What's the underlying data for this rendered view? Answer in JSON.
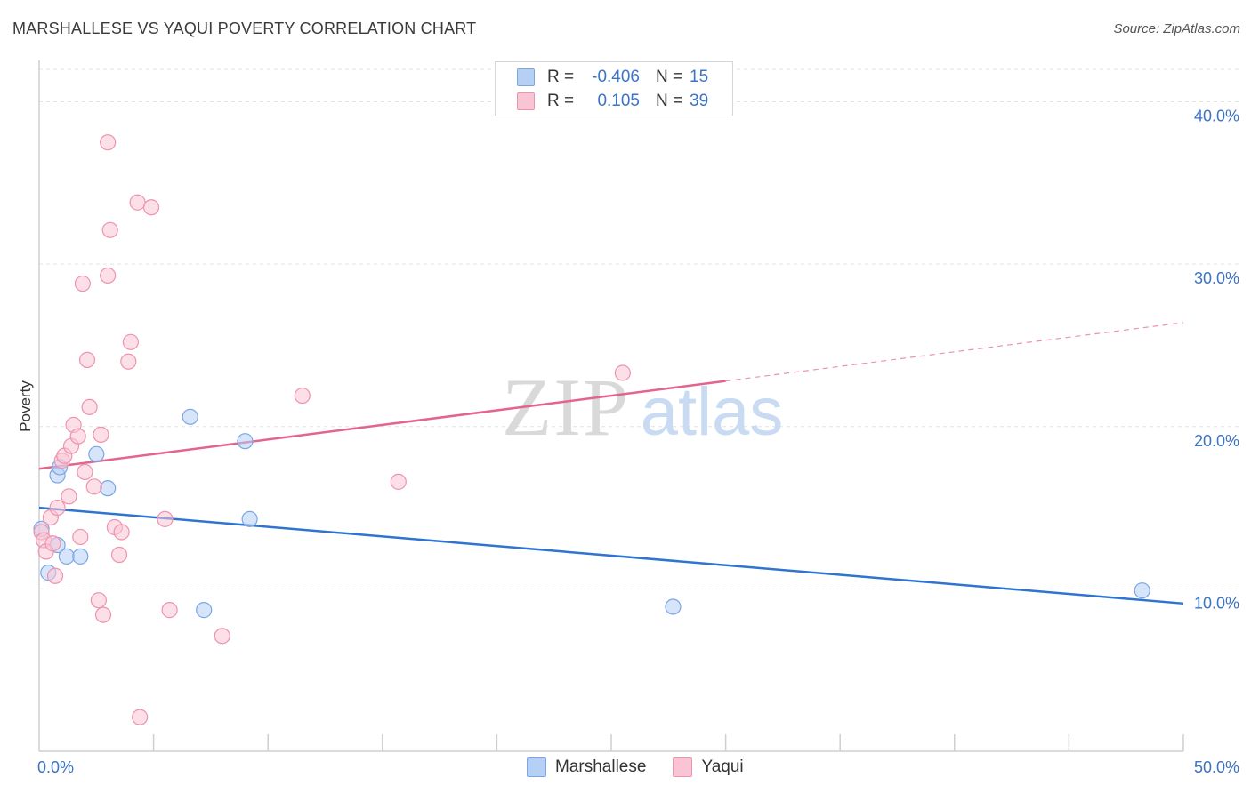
{
  "title": "MARSHALLESE VS YAQUI POVERTY CORRELATION CHART",
  "source": "Source: ZipAtlas.com",
  "watermark": {
    "zip": "ZIP",
    "atlas": "atlas"
  },
  "legend": {
    "r_label": "R =",
    "n_label": "N =",
    "rows": [
      {
        "name": "Marshallese",
        "r": "-0.406",
        "n": "15",
        "fill": "#b6d0f5",
        "stroke": "#7aa6e6"
      },
      {
        "name": "Yaqui",
        "r": "0.105",
        "n": "39",
        "fill": "#f9c4d3",
        "stroke": "#ee93af"
      }
    ]
  },
  "colors": {
    "blue_line": "#2f74d0",
    "pink_line": "#e4648b",
    "tick_text": "#3b73c7",
    "grid": "#e3e3e3"
  },
  "chart_data": {
    "type": "scatter",
    "title": "MARSHALLESE VS YAQUI POVERTY CORRELATION CHART",
    "xlabel": "",
    "ylabel": "Poverty",
    "xlim": [
      0,
      50
    ],
    "ylim": [
      0,
      42
    ],
    "x_ticks_labels": [
      "0.0%",
      "50.0%"
    ],
    "y_ticks": [
      10,
      20,
      30,
      40
    ],
    "y_tick_labels": [
      "10.0%",
      "20.0%",
      "30.0%",
      "40.0%"
    ],
    "series": [
      {
        "name": "Marshallese",
        "points": [
          [
            0.1,
            13.7
          ],
          [
            0.4,
            11.0
          ],
          [
            0.8,
            12.7
          ],
          [
            0.8,
            17.0
          ],
          [
            0.9,
            17.5
          ],
          [
            1.2,
            12.0
          ],
          [
            1.8,
            12.0
          ],
          [
            2.5,
            18.3
          ],
          [
            3.0,
            16.2
          ],
          [
            6.6,
            20.6
          ],
          [
            7.2,
            8.7
          ],
          [
            9.0,
            19.1
          ],
          [
            9.2,
            14.3
          ],
          [
            27.7,
            8.9
          ],
          [
            48.2,
            9.9
          ]
        ],
        "trend": {
          "x": [
            0,
            50
          ],
          "y": [
            15.0,
            9.1
          ],
          "dashed_from": null
        }
      },
      {
        "name": "Yaqui",
        "points": [
          [
            0.1,
            13.5
          ],
          [
            0.2,
            13.0
          ],
          [
            0.3,
            12.3
          ],
          [
            0.5,
            14.4
          ],
          [
            0.6,
            12.8
          ],
          [
            0.7,
            10.8
          ],
          [
            0.8,
            15.0
          ],
          [
            1.0,
            17.9
          ],
          [
            1.1,
            18.2
          ],
          [
            1.3,
            15.7
          ],
          [
            1.4,
            18.8
          ],
          [
            1.5,
            20.1
          ],
          [
            1.7,
            19.4
          ],
          [
            1.8,
            13.2
          ],
          [
            1.9,
            28.8
          ],
          [
            2.0,
            17.2
          ],
          [
            2.1,
            24.1
          ],
          [
            2.2,
            21.2
          ],
          [
            2.4,
            16.3
          ],
          [
            2.6,
            9.3
          ],
          [
            2.7,
            19.5
          ],
          [
            2.8,
            8.4
          ],
          [
            3.0,
            37.5
          ],
          [
            3.0,
            29.3
          ],
          [
            3.1,
            32.1
          ],
          [
            3.3,
            13.8
          ],
          [
            3.5,
            12.1
          ],
          [
            3.6,
            13.5
          ],
          [
            3.9,
            24.0
          ],
          [
            4.0,
            25.2
          ],
          [
            4.3,
            33.8
          ],
          [
            4.4,
            2.1
          ],
          [
            4.9,
            33.5
          ],
          [
            5.5,
            14.3
          ],
          [
            5.7,
            8.7
          ],
          [
            8.0,
            7.1
          ],
          [
            11.5,
            21.9
          ],
          [
            15.7,
            16.6
          ],
          [
            25.5,
            23.3
          ]
        ],
        "trend": {
          "x": [
            0,
            50
          ],
          "y": [
            17.4,
            26.4
          ],
          "dashed_from": 30
        }
      }
    ]
  }
}
